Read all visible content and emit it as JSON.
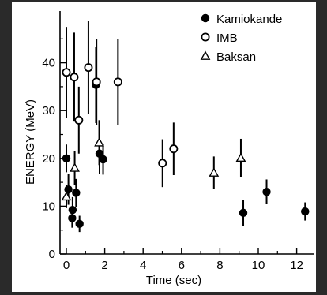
{
  "chart_data": {
    "type": "scatter",
    "xlabel": "Time (sec)",
    "ylabel": "ENERGY (MeV)",
    "xlim": [
      -0.4,
      13
    ],
    "ylim": [
      0,
      55
    ],
    "x_ticks": [
      "0",
      "2",
      "4",
      "6",
      "8",
      "10",
      "12"
    ],
    "y_ticks": [
      "0",
      "10",
      "20",
      "30",
      "40"
    ],
    "legend_position": "top-right",
    "series": [
      {
        "name": "Kamiokande",
        "marker": "filled-circle",
        "points": [
          {
            "x": 0.0,
            "y": 20.0,
            "err": 2.9
          },
          {
            "x": 0.107,
            "y": 13.5,
            "err": 3.2
          },
          {
            "x": 0.303,
            "y": 7.5,
            "err": 2.0
          },
          {
            "x": 0.324,
            "y": 9.2,
            "err": 2.7
          },
          {
            "x": 0.507,
            "y": 12.8,
            "err": 2.9
          },
          {
            "x": 0.686,
            "y": 6.3,
            "err": 1.7
          },
          {
            "x": 1.541,
            "y": 35.4,
            "err": 8.0
          },
          {
            "x": 1.728,
            "y": 21.0,
            "err": 4.2
          },
          {
            "x": 1.915,
            "y": 19.8,
            "err": 3.2
          },
          {
            "x": 9.219,
            "y": 8.6,
            "err": 2.7
          },
          {
            "x": 10.433,
            "y": 13.0,
            "err": 2.6
          },
          {
            "x": 12.439,
            "y": 8.9,
            "err": 1.9
          }
        ]
      },
      {
        "name": "IMB",
        "marker": "open-circle",
        "points": [
          {
            "x": 0.0,
            "y": 38.0,
            "err": 9.5
          },
          {
            "x": 0.41,
            "y": 37.0,
            "err": 9.3
          },
          {
            "x": 0.65,
            "y": 28.0,
            "err": 7.0
          },
          {
            "x": 1.15,
            "y": 39.0,
            "err": 9.8
          },
          {
            "x": 1.57,
            "y": 36.0,
            "err": 9.0
          },
          {
            "x": 2.69,
            "y": 36.0,
            "err": 9.0
          },
          {
            "x": 5.01,
            "y": 19.0,
            "err": 5.0
          },
          {
            "x": 5.59,
            "y": 22.0,
            "err": 5.5
          }
        ]
      },
      {
        "name": "Baksan",
        "marker": "open-triangle",
        "points": [
          {
            "x": 0.0,
            "y": 12.0,
            "err": 2.4
          },
          {
            "x": 0.435,
            "y": 18.0,
            "err": 3.6
          },
          {
            "x": 1.71,
            "y": 23.3,
            "err": 4.7
          },
          {
            "x": 7.687,
            "y": 17.0,
            "err": 3.4
          },
          {
            "x": 9.093,
            "y": 20.1,
            "err": 4.0
          }
        ]
      }
    ]
  }
}
